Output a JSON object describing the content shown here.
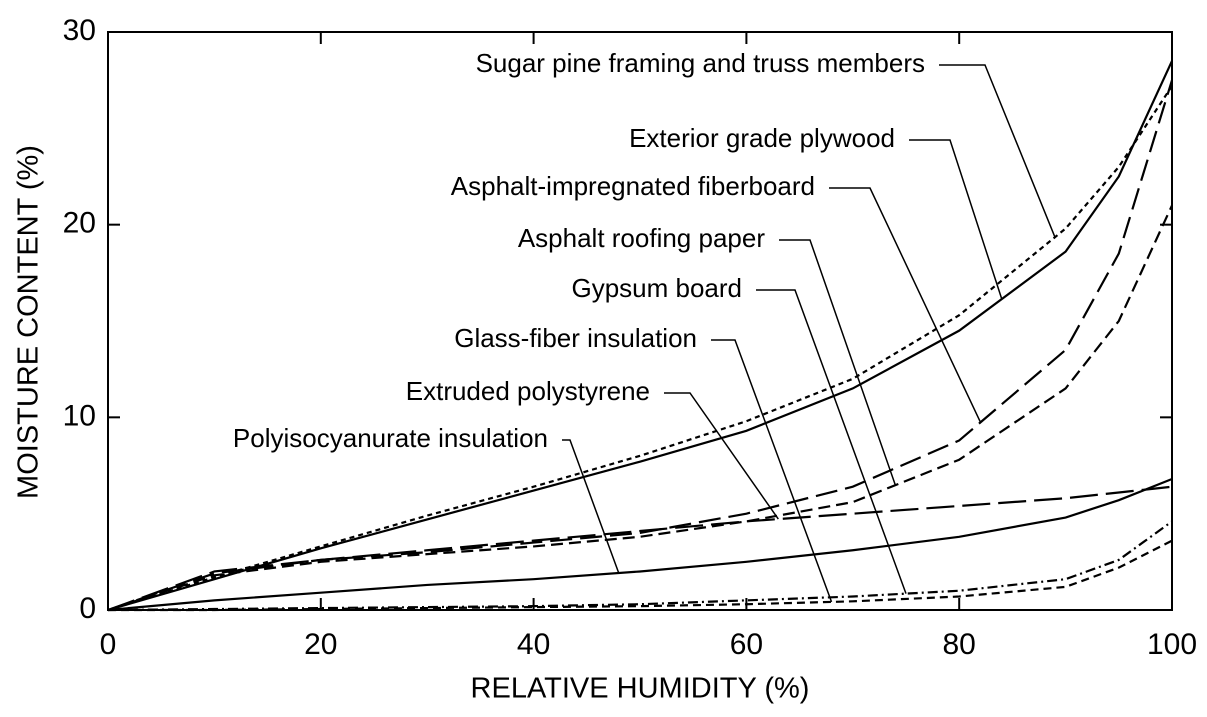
{
  "chart_data": {
    "type": "line",
    "xlabel": "RELATIVE HUMIDITY (%)",
    "ylabel": "MOISTURE CONTENT (%)",
    "x": [
      0,
      10,
      20,
      30,
      40,
      50,
      60,
      70,
      80,
      90,
      95,
      100
    ],
    "xlim": [
      0,
      100
    ],
    "xticks": [
      0,
      20,
      40,
      60,
      80,
      100
    ],
    "ylim": [
      0,
      30
    ],
    "yticks": [
      0,
      10,
      20,
      30
    ],
    "grid": false,
    "series": [
      {
        "name": "Sugar pine framing and truss members",
        "color": "#000000",
        "dash": "5 4",
        "values": [
          0,
          1.7,
          3.3,
          4.9,
          6.4,
          8.0,
          9.8,
          12.0,
          15.3,
          19.8,
          23.0,
          27.2
        ]
      },
      {
        "name": "Exterior grade plywood",
        "color": "#000000",
        "dash": "none",
        "values": [
          0,
          1.6,
          3.2,
          4.7,
          6.2,
          7.7,
          9.3,
          11.5,
          14.5,
          18.6,
          22.5,
          28.5
        ]
      },
      {
        "name": "Asphalt-impregnated fiberboard",
        "color": "#000000",
        "dash": "22 8",
        "values": [
          0,
          1.9,
          2.6,
          3.0,
          3.5,
          4.0,
          5.0,
          6.4,
          8.8,
          13.5,
          18.5,
          27.5
        ]
      },
      {
        "name": "Asphalt roofing paper",
        "color": "#000000",
        "dash": "12 6",
        "values": [
          0,
          1.8,
          2.5,
          2.9,
          3.3,
          3.8,
          4.6,
          5.6,
          7.8,
          11.5,
          15.0,
          21.0
        ]
      },
      {
        "name": "Gypsum board",
        "color": "#000000",
        "dash": "10 4 2 4",
        "values": [
          0,
          0.05,
          0.1,
          0.15,
          0.2,
          0.3,
          0.5,
          0.7,
          1.0,
          1.6,
          2.6,
          4.6
        ]
      },
      {
        "name": "Glass-fiber insulation",
        "color": "#000000",
        "dash": "8 5",
        "values": [
          0,
          0,
          0.05,
          0.1,
          0.15,
          0.2,
          0.3,
          0.45,
          0.7,
          1.2,
          2.2,
          3.6
        ]
      },
      {
        "name": "Extruded polystyrene",
        "color": "#000000",
        "dash": "28 8",
        "values": [
          0,
          2.0,
          2.6,
          3.1,
          3.6,
          4.1,
          4.6,
          5.0,
          5.4,
          5.8,
          6.1,
          6.4
        ]
      },
      {
        "name": "Polyisocyanurate insulation",
        "color": "#000000",
        "dash": "none",
        "values": [
          0,
          0.5,
          0.9,
          1.3,
          1.6,
          2.0,
          2.5,
          3.1,
          3.8,
          4.8,
          5.7,
          6.8
        ]
      }
    ]
  }
}
